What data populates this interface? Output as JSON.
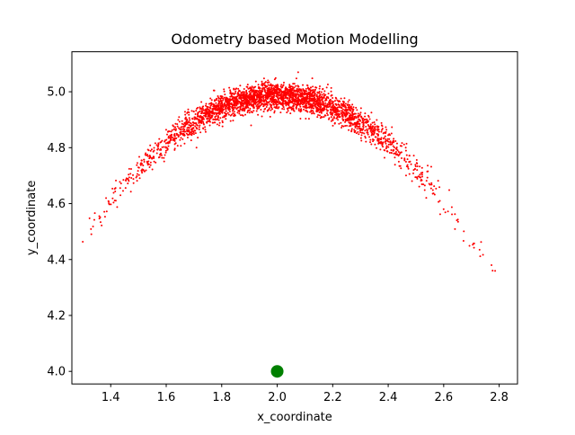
{
  "chart_data": {
    "type": "scatter",
    "title": "Odometry based Motion Modelling",
    "xlabel": "x_coordinate",
    "ylabel": "y_coordinate",
    "xlim": [
      1.26,
      2.866
    ],
    "ylim": [
      3.955,
      5.143
    ],
    "xticks": [
      "1.4",
      "1.6",
      "1.8",
      "2.0",
      "2.2",
      "2.4",
      "2.6",
      "2.8"
    ],
    "yticks": [
      "4.0",
      "4.2",
      "4.4",
      "4.6",
      "4.8",
      "5.0"
    ],
    "grid": false,
    "legend": "none",
    "series": [
      {
        "color": "#ff0000",
        "marker": "dot",
        "distribution": {
          "count": 3000,
          "x_center": 2.0,
          "arc_peak_y": 4.985,
          "arc_curvature": 1.05,
          "x_spread_sd": 0.25,
          "y_spread_sd": 0.024,
          "x_min": 1.29,
          "x_max": 2.79
        }
      },
      {
        "color": "#008000",
        "marker": "large-circle",
        "points": [
          [
            2.0,
            4.0
          ]
        ]
      }
    ]
  }
}
